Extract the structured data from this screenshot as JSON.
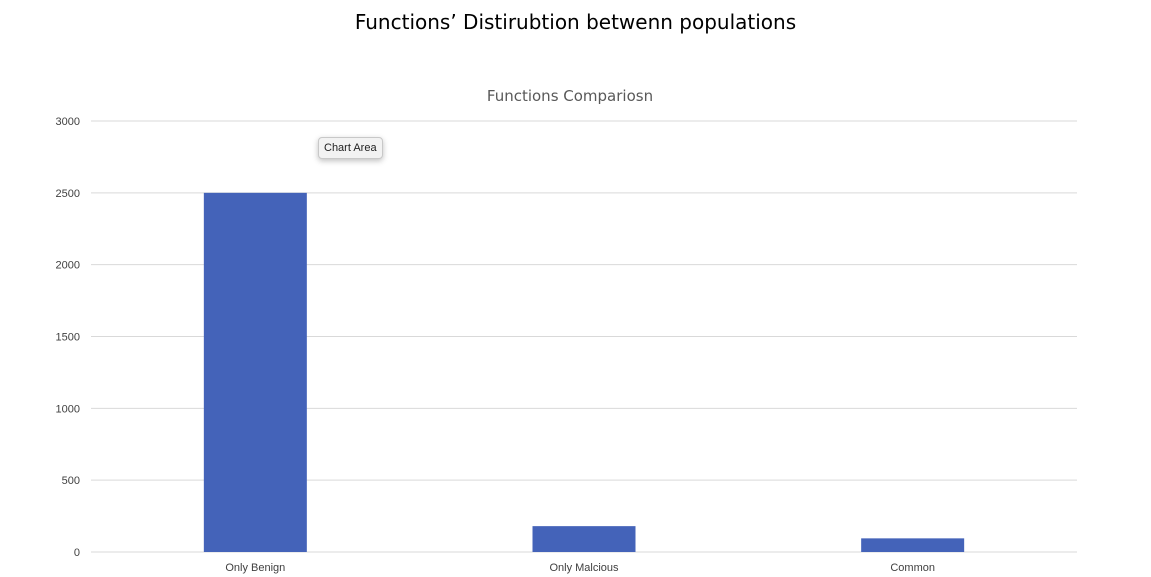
{
  "page": {
    "title": "Functions’ Distirubtion betwenn populations"
  },
  "tooltip": {
    "text": "Chart Area"
  },
  "chart_data": {
    "type": "bar",
    "title": "Functions Compariosn",
    "categories": [
      "Only Benign",
      "Only Malcious",
      "Common"
    ],
    "series": [
      {
        "values": [
          2500,
          180,
          95
        ],
        "color": "#4463b9"
      }
    ],
    "xlabel": "",
    "ylabel": "",
    "ylim": [
      0,
      3000
    ],
    "yticks": [
      0,
      500,
      1000,
      1500,
      2000,
      2500,
      3000
    ],
    "grid": true,
    "legend": "none",
    "colors": {
      "bar": "#4463b9",
      "grid": "#d9d9d9",
      "axis_text": "#404040",
      "title": "#595959"
    }
  }
}
